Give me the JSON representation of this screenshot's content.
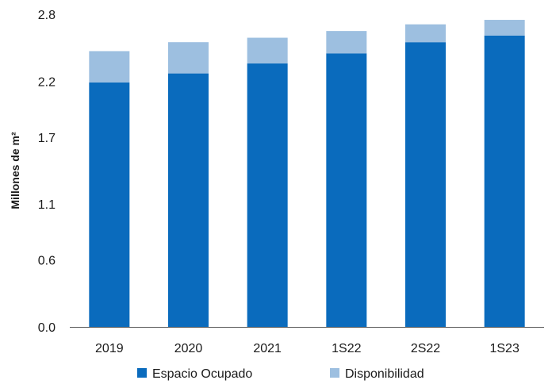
{
  "chart_data": {
    "type": "bar",
    "stacked": true,
    "categories": [
      "2019",
      "2020",
      "2021",
      "1S22",
      "2S22",
      "1S23"
    ],
    "series": [
      {
        "name": "Espacio Ocupado",
        "color": "#0a6bbd",
        "values": [
          2.19,
          2.27,
          2.36,
          2.45,
          2.55,
          2.61
        ]
      },
      {
        "name": "Disponibilidad",
        "color": "#9dbfe0",
        "values": [
          0.28,
          0.28,
          0.23,
          0.2,
          0.16,
          0.14
        ]
      }
    ],
    "ylabel": "Millones de m²",
    "y_ticks": [
      "0.0",
      "0.6",
      "1.1",
      "1.7",
      "2.2",
      "2.8"
    ],
    "ylim": [
      0,
      2.8
    ],
    "grid": false,
    "legend_position": "bottom"
  }
}
